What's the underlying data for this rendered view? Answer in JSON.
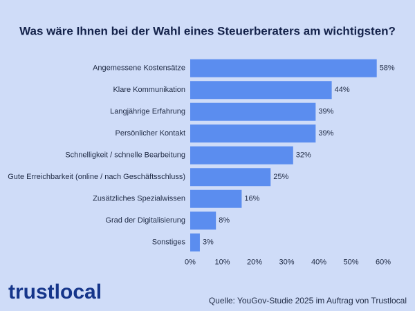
{
  "chart_data": {
    "type": "bar",
    "orientation": "horizontal",
    "title": "Was wäre Ihnen bei der Wahl eines Steuerberaters am wichtigsten?",
    "categories": [
      "Angemessene Kostensätze",
      "Klare Kommunikation",
      "Langjährige Erfahrung",
      "Persönlicher Kontakt",
      "Schnelligkeit / schnelle Bearbeitung",
      "Gute Erreichbarkeit (online / nach Geschäftsschluss)",
      "Zusätzliches Spezialwissen",
      "Grad der Digitalisierung",
      "Sonstiges"
    ],
    "values": [
      58,
      44,
      39,
      39,
      32,
      25,
      16,
      8,
      3
    ],
    "value_labels": [
      "58%",
      "44%",
      "39%",
      "39%",
      "32%",
      "25%",
      "16%",
      "8%",
      "3%"
    ],
    "color": "#5b8def",
    "xlim": [
      0,
      60
    ],
    "xticks": [
      {
        "value": 0,
        "label": "0%"
      },
      {
        "value": 10,
        "label": "10%"
      },
      {
        "value": 20,
        "label": "20%"
      },
      {
        "value": 30,
        "label": "30%"
      },
      {
        "value": 40,
        "label": "40%"
      },
      {
        "value": 50,
        "label": "50%"
      },
      {
        "value": 60,
        "label": "60%"
      }
    ]
  },
  "logo": "trustlocal",
  "source": "Quelle: YouGov-Studie 2025 im Auftrag von Trustlocal"
}
